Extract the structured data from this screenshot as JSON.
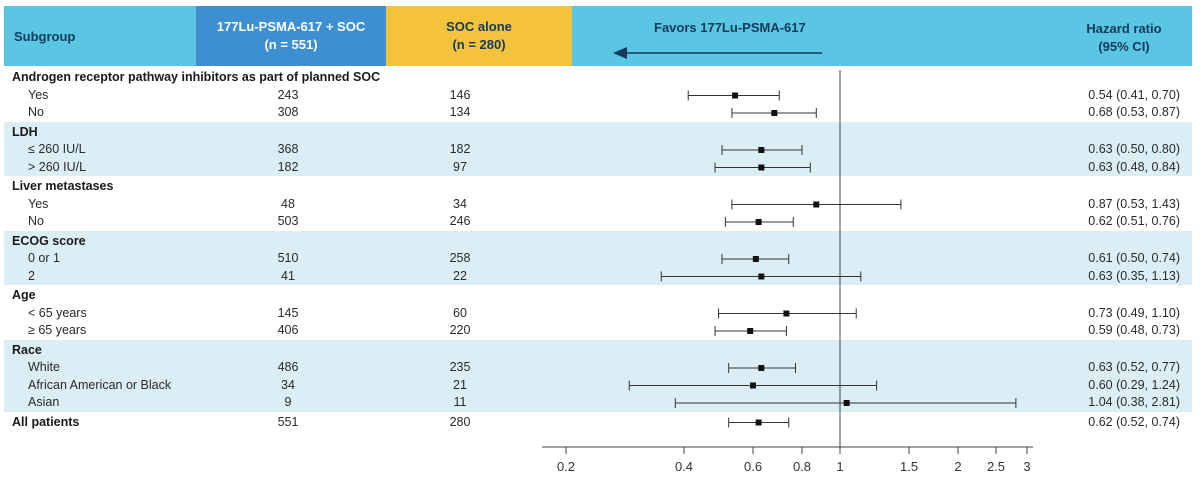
{
  "header": {
    "subgroup": "Subgroup",
    "treatment_line1": "177Lu-PSMA-617 + SOC",
    "treatment_line2": "(n = 551)",
    "soc_line1": "SOC alone",
    "soc_line2": "(n = 280)",
    "favors": "Favors 177Lu-PSMA-617",
    "hr_line1": "Hazard ratio",
    "hr_line2": "(95% CI)"
  },
  "colors": {
    "header": "#5bc5e4",
    "treatment": "#3d8fd1",
    "soc": "#f4c23d",
    "band": "#dbeef6"
  },
  "chart_data": {
    "type": "forest",
    "x_scale": "log",
    "xlim": [
      0.2,
      3
    ],
    "reference_line": 1,
    "x_ticks": [
      "0.2",
      "0.4",
      "0.6",
      "0.8",
      "1",
      "1.5",
      "2",
      "2.5",
      "3"
    ],
    "groups": [
      {
        "name": "Androgen receptor pathway inhibitors as part of planned SOC",
        "rows": [
          {
            "label": "Yes",
            "n_treat": 243,
            "n_soc": 146,
            "hr": 0.54,
            "lo": 0.41,
            "hi": 0.7,
            "text": "0.54 (0.41, 0.70)"
          },
          {
            "label": "No",
            "n_treat": 308,
            "n_soc": 134,
            "hr": 0.68,
            "lo": 0.53,
            "hi": 0.87,
            "text": "0.68 (0.53, 0.87)"
          }
        ]
      },
      {
        "name": "LDH",
        "rows": [
          {
            "label": "≤ 260 IU/L",
            "n_treat": 368,
            "n_soc": 182,
            "hr": 0.63,
            "lo": 0.5,
            "hi": 0.8,
            "text": "0.63 (0.50, 0.80)"
          },
          {
            "label": "> 260 IU/L",
            "n_treat": 182,
            "n_soc": 97,
            "hr": 0.63,
            "lo": 0.48,
            "hi": 0.84,
            "text": "0.63 (0.48, 0.84)"
          }
        ]
      },
      {
        "name": "Liver metastases",
        "rows": [
          {
            "label": "Yes",
            "n_treat": 48,
            "n_soc": 34,
            "hr": 0.87,
            "lo": 0.53,
            "hi": 1.43,
            "text": "0.87 (0.53, 1.43)"
          },
          {
            "label": "No",
            "n_treat": 503,
            "n_soc": 246,
            "hr": 0.62,
            "lo": 0.51,
            "hi": 0.76,
            "text": "0.62 (0.51, 0.76)"
          }
        ]
      },
      {
        "name": "ECOG score",
        "rows": [
          {
            "label": "0 or 1",
            "n_treat": 510,
            "n_soc": 258,
            "hr": 0.61,
            "lo": 0.5,
            "hi": 0.74,
            "text": "0.61 (0.50, 0.74)"
          },
          {
            "label": "2",
            "n_treat": 41,
            "n_soc": 22,
            "hr": 0.63,
            "lo": 0.35,
            "hi": 1.13,
            "text": "0.63 (0.35, 1.13)"
          }
        ]
      },
      {
        "name": "Age",
        "rows": [
          {
            "label": "< 65 years",
            "n_treat": 145,
            "n_soc": 60,
            "hr": 0.73,
            "lo": 0.49,
            "hi": 1.1,
            "text": "0.73 (0.49, 1.10)"
          },
          {
            "label": "≥ 65 years",
            "n_treat": 406,
            "n_soc": 220,
            "hr": 0.59,
            "lo": 0.48,
            "hi": 0.73,
            "text": "0.59 (0.48, 0.73)"
          }
        ]
      },
      {
        "name": "Race",
        "rows": [
          {
            "label": "White",
            "n_treat": 486,
            "n_soc": 235,
            "hr": 0.63,
            "lo": 0.52,
            "hi": 0.77,
            "text": "0.63 (0.52, 0.77)"
          },
          {
            "label": "African American or Black",
            "n_treat": 34,
            "n_soc": 21,
            "hr": 0.6,
            "lo": 0.29,
            "hi": 1.24,
            "text": "0.60 (0.29, 1.24)"
          },
          {
            "label": "Asian",
            "n_treat": 9,
            "n_soc": 11,
            "hr": 1.04,
            "lo": 0.38,
            "hi": 2.81,
            "text": "1.04 (0.38, 2.81)"
          }
        ]
      },
      {
        "name": "All patients",
        "summary": true,
        "rows": [
          {
            "label": "All patients",
            "n_treat": 551,
            "n_soc": 280,
            "hr": 0.62,
            "lo": 0.52,
            "hi": 0.74,
            "text": "0.62 (0.52, 0.74)"
          }
        ]
      }
    ]
  }
}
